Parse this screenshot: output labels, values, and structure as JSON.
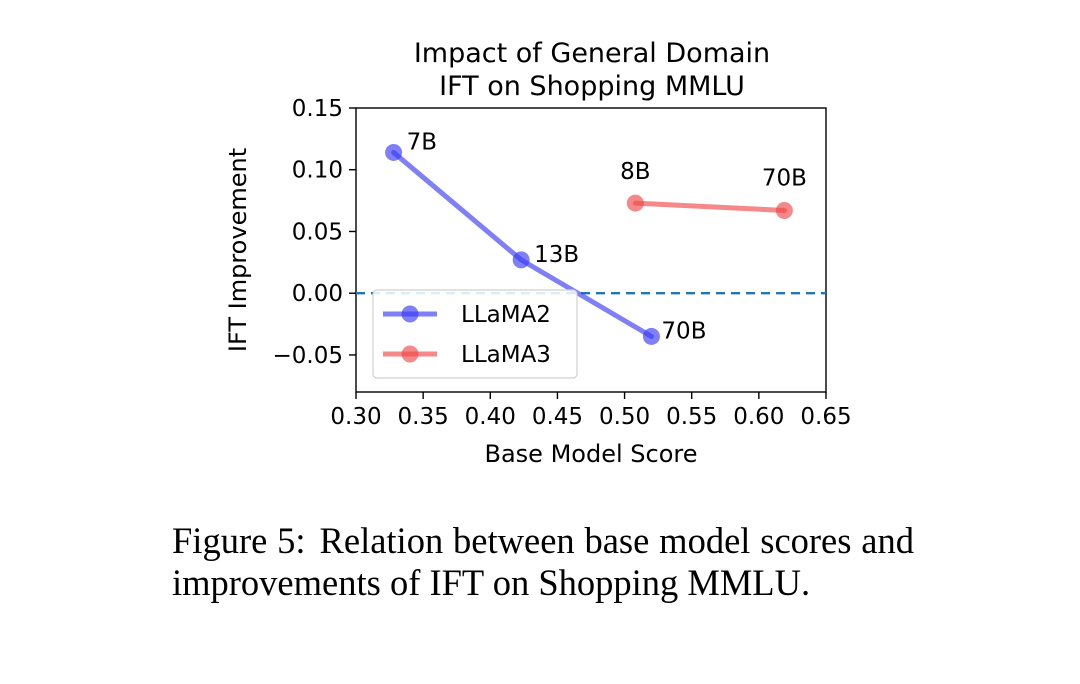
{
  "chart_data": {
    "type": "line",
    "title_lines": [
      "Impact of General Domain",
      "IFT on Shopping MMLU"
    ],
    "xlabel": "Base Model Score",
    "ylabel": "IFT Improvement",
    "xlim": [
      0.3,
      0.65
    ],
    "ylim": [
      -0.08,
      0.15
    ],
    "x_ticks": [
      0.3,
      0.35,
      0.4,
      0.45,
      0.5,
      0.55,
      0.6,
      0.65
    ],
    "x_tick_labels": [
      "0.30",
      "0.35",
      "0.40",
      "0.45",
      "0.50",
      "0.55",
      "0.60",
      "0.65"
    ],
    "y_ticks": [
      -0.05,
      0.0,
      0.05,
      0.1,
      0.15
    ],
    "y_tick_labels": [
      "−0.05",
      "0.00",
      "0.05",
      "0.10",
      "0.15"
    ],
    "reference_line": {
      "y": 0.0,
      "style": "dashed",
      "color": "#1f77b4"
    },
    "legend_position": "lower-left",
    "series": [
      {
        "name": "LLaMA2",
        "color": "#3b3bf5",
        "x": [
          0.328,
          0.423,
          0.52
        ],
        "y": [
          0.114,
          0.027,
          -0.035
        ],
        "point_labels": [
          "7B",
          "13B",
          "70B"
        ]
      },
      {
        "name": "LLaMA3",
        "color": "#f04848",
        "x": [
          0.508,
          0.619
        ],
        "y": [
          0.073,
          0.067
        ],
        "point_labels": [
          "8B",
          "70B"
        ]
      }
    ]
  },
  "caption": {
    "label": "Figure 5:",
    "text": "Relation between base model scores and improvements of IFT on Shopping MMLU."
  }
}
